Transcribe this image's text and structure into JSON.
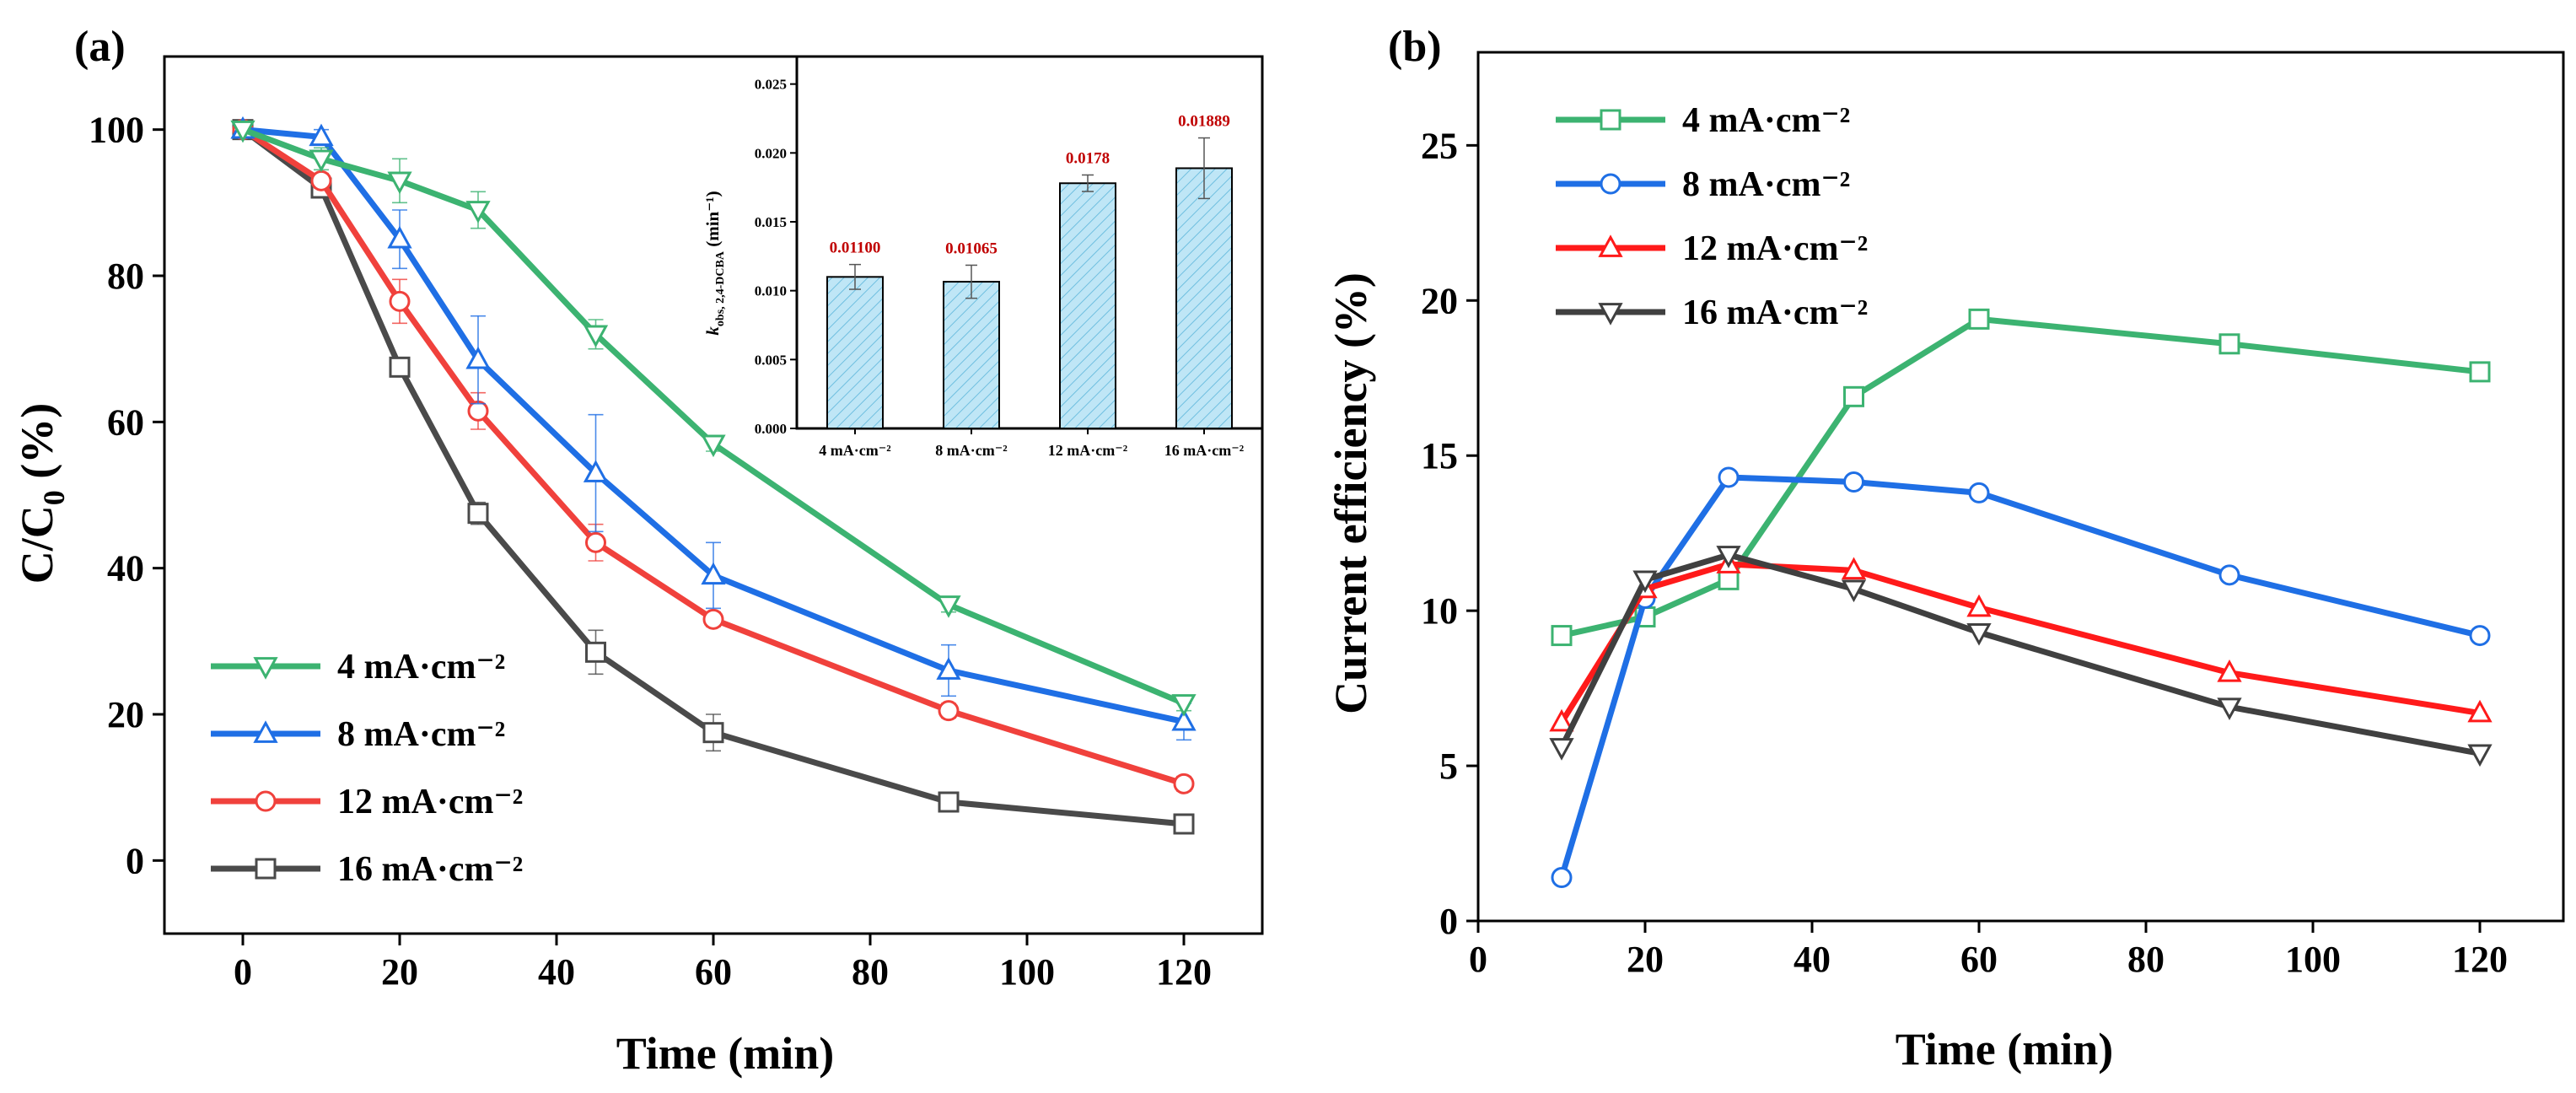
{
  "chart_data": [
    {
      "panel": "(a)",
      "type": "line",
      "xlabel": "Time (min)",
      "ylabel": "C/C",
      "ylabel_subscript": "0",
      "ylabel_suffix": " (%)",
      "xlim": [
        -10,
        130
      ],
      "ylim": [
        -10,
        110
      ],
      "xticks": [
        0,
        20,
        40,
        60,
        80,
        100,
        120
      ],
      "yticks": [
        0,
        20,
        40,
        60,
        80,
        100
      ],
      "legend_position": "bottom-left",
      "series": [
        {
          "name": "4 mA·cm⁻²",
          "color": "#3cb371",
          "marker": "triangle-down",
          "x": [
            0,
            10,
            20,
            30,
            45,
            60,
            90,
            120
          ],
          "values": [
            100,
            96,
            93,
            89,
            72,
            57,
            35,
            21.5
          ],
          "errors": [
            0,
            1.5,
            3,
            2.5,
            2,
            1,
            1,
            1
          ]
        },
        {
          "name": "8 mA·cm⁻²",
          "color": "#1f6fe5",
          "marker": "triangle-up",
          "x": [
            0,
            10,
            20,
            30,
            45,
            60,
            90,
            120
          ],
          "values": [
            100,
            99,
            85,
            68.5,
            53,
            39,
            26,
            19
          ],
          "errors": [
            0,
            1,
            4,
            6,
            8,
            4.5,
            3.5,
            2.5
          ]
        },
        {
          "name": "12 mA·cm⁻²",
          "color": "#f0413c",
          "marker": "circle",
          "x": [
            0,
            10,
            20,
            30,
            45,
            60,
            90,
            120
          ],
          "values": [
            100,
            93,
            76.5,
            61.5,
            43.5,
            33,
            20.5,
            10.5
          ],
          "errors": [
            0,
            1,
            3,
            2.5,
            2.5,
            1,
            1,
            1
          ]
        },
        {
          "name": "16 mA·cm⁻²",
          "color": "#4a4a4a",
          "marker": "square",
          "x": [
            0,
            10,
            20,
            30,
            45,
            60,
            90,
            120
          ],
          "values": [
            100,
            92,
            67.5,
            47.5,
            28.5,
            17.5,
            8,
            5
          ],
          "errors": [
            0,
            1,
            1,
            1.5,
            3,
            2.5,
            1,
            1
          ]
        }
      ],
      "inset": {
        "type": "bar",
        "ylabel_italic": "k",
        "ylabel_subscript": "obs, 2,4-DCBA",
        "ylabel_suffix": " (min⁻¹)",
        "ylim": [
          0,
          0.027
        ],
        "yticks": [
          0.0,
          0.005,
          0.01,
          0.015,
          0.02,
          0.025
        ],
        "ytick_labels": [
          "0.000",
          "0.005",
          "0.010",
          "0.015",
          "0.020",
          "0.025"
        ],
        "categories": [
          "4 mA·cm⁻²",
          "8 mA·cm⁻²",
          "12 mA·cm⁻²",
          "16 mA·cm⁻²"
        ],
        "values": [
          0.011,
          0.01065,
          0.0178,
          0.01889
        ],
        "value_labels": [
          "0.01100",
          "0.01065",
          "0.0178",
          "0.01889"
        ],
        "errors": [
          0.0009,
          0.0012,
          0.0006,
          0.0022
        ],
        "bar_color": "#bfe6f6",
        "label_color": "#c00000"
      }
    },
    {
      "panel": "(b)",
      "type": "line",
      "xlabel": "Time (min)",
      "ylabel": "Current efficiency (%)",
      "xlim": [
        0,
        130
      ],
      "ylim": [
        0,
        28
      ],
      "xticks": [
        0,
        20,
        40,
        60,
        80,
        100,
        120
      ],
      "yticks": [
        0,
        5,
        10,
        15,
        20,
        25
      ],
      "legend_position": "top-left",
      "series": [
        {
          "name": "4 mA·cm⁻²",
          "color": "#3cb371",
          "marker": "square",
          "x": [
            10,
            20,
            30,
            45,
            60,
            90,
            120
          ],
          "values": [
            9.2,
            9.8,
            11.0,
            16.9,
            19.4,
            18.6,
            17.7
          ]
        },
        {
          "name": "8 mA·cm⁻²",
          "color": "#1f6fe5",
          "marker": "circle",
          "x": [
            10,
            20,
            30,
            45,
            60,
            90,
            120
          ],
          "values": [
            1.4,
            10.4,
            14.3,
            14.15,
            13.8,
            11.15,
            9.2
          ]
        },
        {
          "name": "12 mA·cm⁻²",
          "color": "#ff1a1a",
          "marker": "triangle-up",
          "x": [
            10,
            20,
            30,
            45,
            60,
            90,
            120
          ],
          "values": [
            6.4,
            10.7,
            11.5,
            11.3,
            10.1,
            8.0,
            6.7
          ]
        },
        {
          "name": "16 mA·cm⁻²",
          "color": "#404040",
          "marker": "triangle-down",
          "x": [
            10,
            20,
            30,
            45,
            60,
            90,
            120
          ],
          "values": [
            5.6,
            11.0,
            11.8,
            10.7,
            9.3,
            6.9,
            5.4
          ]
        }
      ]
    }
  ]
}
